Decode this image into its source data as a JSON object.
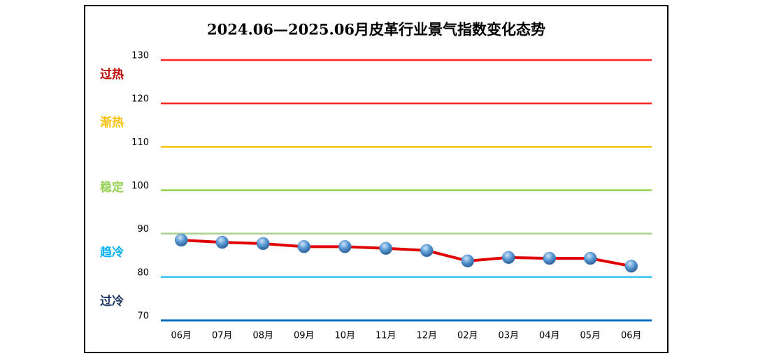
{
  "chart_data": {
    "type": "line",
    "title": "2024.06—2025.06月皮革行业景气指数变化态势",
    "categories": [
      "06月",
      "07月",
      "08月",
      "09月",
      "10月",
      "11月",
      "12月",
      "02月",
      "03月",
      "04月",
      "05月",
      "06月"
    ],
    "series": [
      {
        "name": "景气指数",
        "color": "#e00000",
        "marker_color": "#4a86c8",
        "values": [
          88.5,
          88.0,
          87.7,
          87.0,
          87.0,
          86.6,
          86.1,
          83.7,
          84.5,
          84.3,
          84.3,
          82.5
        ]
      }
    ],
    "ylim": [
      70,
      130
    ],
    "yticks": [
      70,
      80,
      90,
      100,
      110,
      120,
      130
    ],
    "ytick_colors": [
      "#0070c0",
      "#33c3f0",
      "#a9d18e",
      "#92d050",
      "#ffc000",
      "#ff2020",
      "#ff2020"
    ],
    "zones": [
      {
        "name": "过热",
        "color": "#c00000"
      },
      {
        "name": "渐热",
        "color": "#ffc000"
      },
      {
        "name": "稳定",
        "color": "#92d050"
      },
      {
        "name": "趋冷",
        "color": "#00b0f0"
      },
      {
        "name": "过冷",
        "color": "#1f3864"
      }
    ]
  }
}
